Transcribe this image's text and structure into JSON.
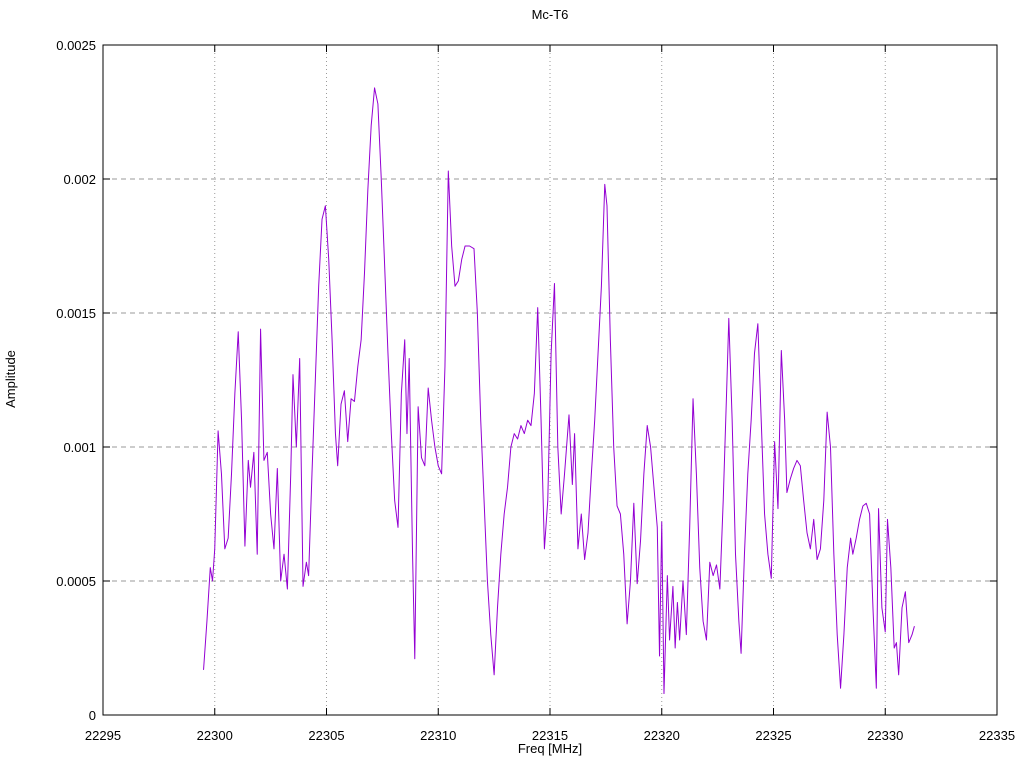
{
  "chart_data": {
    "type": "line",
    "title": "Mc-T6",
    "xlabel": "Freq [MHz]",
    "ylabel": "Amplitude",
    "xlim": [
      22295,
      22335
    ],
    "ylim": [
      0,
      0.0025
    ],
    "xticks": {
      "values": [
        22295,
        22300,
        22305,
        22310,
        22315,
        22320,
        22325,
        22330,
        22335
      ],
      "labels": [
        "22295",
        "22300",
        "22305",
        "22310",
        "22315",
        "22320",
        "22325",
        "22330",
        "22335"
      ]
    },
    "yticks": {
      "values": [
        0,
        0.0005,
        0.001,
        0.0015,
        0.002,
        0.0025
      ],
      "labels": [
        "0",
        "0.0005",
        "0.001",
        "0.0015",
        "0.002",
        "0.0025"
      ]
    },
    "grid": true,
    "legend": "none",
    "line_color": "#9400d3",
    "grid_color": "#9a9a9a",
    "axis_color": "#000000",
    "series": [
      {
        "name": "Mc-T6",
        "points": [
          [
            22299.5,
            0.00017
          ],
          [
            22299.65,
            0.00035
          ],
          [
            22299.8,
            0.00055
          ],
          [
            22299.9,
            0.0005
          ],
          [
            22300.0,
            0.00062
          ],
          [
            22300.15,
            0.00106
          ],
          [
            22300.3,
            0.0009
          ],
          [
            22300.45,
            0.00062
          ],
          [
            22300.6,
            0.00066
          ],
          [
            22300.75,
            0.0009
          ],
          [
            22300.9,
            0.0012
          ],
          [
            22301.05,
            0.00143
          ],
          [
            22301.2,
            0.0011
          ],
          [
            22301.35,
            0.00063
          ],
          [
            22301.5,
            0.00095
          ],
          [
            22301.6,
            0.00085
          ],
          [
            22301.75,
            0.00098
          ],
          [
            22301.9,
            0.0006
          ],
          [
            22302.05,
            0.00144
          ],
          [
            22302.2,
            0.00095
          ],
          [
            22302.35,
            0.00098
          ],
          [
            22302.5,
            0.00075
          ],
          [
            22302.65,
            0.00062
          ],
          [
            22302.8,
            0.00092
          ],
          [
            22302.95,
            0.0005
          ],
          [
            22303.1,
            0.0006
          ],
          [
            22303.25,
            0.00047
          ],
          [
            22303.4,
            0.0009
          ],
          [
            22303.5,
            0.00127
          ],
          [
            22303.65,
            0.001
          ],
          [
            22303.8,
            0.00133
          ],
          [
            22303.95,
            0.00048
          ],
          [
            22304.1,
            0.00057
          ],
          [
            22304.2,
            0.00052
          ],
          [
            22304.35,
            0.0009
          ],
          [
            22304.5,
            0.00125
          ],
          [
            22304.65,
            0.0016
          ],
          [
            22304.8,
            0.00185
          ],
          [
            22304.95,
            0.0019
          ],
          [
            22305.1,
            0.0017
          ],
          [
            22305.25,
            0.0014
          ],
          [
            22305.4,
            0.00105
          ],
          [
            22305.5,
            0.00093
          ],
          [
            22305.65,
            0.00116
          ],
          [
            22305.8,
            0.00121
          ],
          [
            22305.95,
            0.00102
          ],
          [
            22306.1,
            0.00118
          ],
          [
            22306.25,
            0.00117
          ],
          [
            22306.4,
            0.0013
          ],
          [
            22306.55,
            0.0014
          ],
          [
            22306.7,
            0.00165
          ],
          [
            22306.85,
            0.00196
          ],
          [
            22307.0,
            0.0022
          ],
          [
            22307.15,
            0.00234
          ],
          [
            22307.3,
            0.00228
          ],
          [
            22307.45,
            0.002
          ],
          [
            22307.6,
            0.00168
          ],
          [
            22307.75,
            0.00135
          ],
          [
            22307.9,
            0.00105
          ],
          [
            22308.05,
            0.0008
          ],
          [
            22308.2,
            0.0007
          ],
          [
            22308.35,
            0.0012
          ],
          [
            22308.5,
            0.0014
          ],
          [
            22308.6,
            0.00105
          ],
          [
            22308.7,
            0.00133
          ],
          [
            22308.85,
            0.0006
          ],
          [
            22308.95,
            0.00021
          ],
          [
            22309.1,
            0.00115
          ],
          [
            22309.25,
            0.00096
          ],
          [
            22309.4,
            0.00093
          ],
          [
            22309.55,
            0.00122
          ],
          [
            22309.7,
            0.0011
          ],
          [
            22309.85,
            0.001
          ],
          [
            22310.0,
            0.00093
          ],
          [
            22310.15,
            0.0009
          ],
          [
            22310.3,
            0.0013
          ],
          [
            22310.45,
            0.00203
          ],
          [
            22310.6,
            0.00175
          ],
          [
            22310.75,
            0.0016
          ],
          [
            22310.9,
            0.00162
          ],
          [
            22311.05,
            0.0017
          ],
          [
            22311.2,
            0.00175
          ],
          [
            22311.4,
            0.00175
          ],
          [
            22311.6,
            0.00174
          ],
          [
            22311.75,
            0.0015
          ],
          [
            22311.9,
            0.0011
          ],
          [
            22312.05,
            0.0008
          ],
          [
            22312.2,
            0.0005
          ],
          [
            22312.35,
            0.0003
          ],
          [
            22312.5,
            0.00015
          ],
          [
            22312.65,
            0.0004
          ],
          [
            22312.8,
            0.0006
          ],
          [
            22312.95,
            0.00075
          ],
          [
            22313.1,
            0.00085
          ],
          [
            22313.25,
            0.001
          ],
          [
            22313.4,
            0.00105
          ],
          [
            22313.55,
            0.00103
          ],
          [
            22313.7,
            0.00108
          ],
          [
            22313.85,
            0.00105
          ],
          [
            22314.0,
            0.0011
          ],
          [
            22314.15,
            0.00108
          ],
          [
            22314.3,
            0.0012
          ],
          [
            22314.45,
            0.00152
          ],
          [
            22314.6,
            0.0011
          ],
          [
            22314.75,
            0.00062
          ],
          [
            22314.9,
            0.0008
          ],
          [
            22315.05,
            0.00135
          ],
          [
            22315.2,
            0.00161
          ],
          [
            22315.35,
            0.001
          ],
          [
            22315.5,
            0.00075
          ],
          [
            22315.65,
            0.0009
          ],
          [
            22315.85,
            0.00112
          ],
          [
            22316.0,
            0.00086
          ],
          [
            22316.1,
            0.00105
          ],
          [
            22316.25,
            0.00062
          ],
          [
            22316.4,
            0.00075
          ],
          [
            22316.55,
            0.00058
          ],
          [
            22316.7,
            0.00068
          ],
          [
            22316.85,
            0.0009
          ],
          [
            22317.0,
            0.0011
          ],
          [
            22317.15,
            0.00135
          ],
          [
            22317.3,
            0.0016
          ],
          [
            22317.45,
            0.00198
          ],
          [
            22317.55,
            0.0019
          ],
          [
            22317.7,
            0.0014
          ],
          [
            22317.85,
            0.001
          ],
          [
            22318.0,
            0.00078
          ],
          [
            22318.15,
            0.00075
          ],
          [
            22318.3,
            0.0006
          ],
          [
            22318.45,
            0.00034
          ],
          [
            22318.6,
            0.0005
          ],
          [
            22318.75,
            0.00079
          ],
          [
            22318.9,
            0.00049
          ],
          [
            22319.05,
            0.00065
          ],
          [
            22319.2,
            0.0009
          ],
          [
            22319.35,
            0.00108
          ],
          [
            22319.5,
            0.001
          ],
          [
            22319.65,
            0.00085
          ],
          [
            22319.8,
            0.0007
          ],
          [
            22319.9,
            0.00022
          ],
          [
            22320.0,
            0.00072
          ],
          [
            22320.1,
            8e-05
          ],
          [
            22320.25,
            0.00052
          ],
          [
            22320.35,
            0.00028
          ],
          [
            22320.5,
            0.00048
          ],
          [
            22320.6,
            0.00025
          ],
          [
            22320.7,
            0.00042
          ],
          [
            22320.8,
            0.00028
          ],
          [
            22320.95,
            0.0005
          ],
          [
            22321.1,
            0.0003
          ],
          [
            22321.25,
            0.0007
          ],
          [
            22321.4,
            0.00118
          ],
          [
            22321.55,
            0.0009
          ],
          [
            22321.7,
            0.00055
          ],
          [
            22321.85,
            0.00035
          ],
          [
            22322.0,
            0.00028
          ],
          [
            22322.15,
            0.00057
          ],
          [
            22322.3,
            0.00052
          ],
          [
            22322.45,
            0.00056
          ],
          [
            22322.6,
            0.00047
          ],
          [
            22322.75,
            0.0008
          ],
          [
            22322.9,
            0.0012
          ],
          [
            22323.0,
            0.00148
          ],
          [
            22323.15,
            0.0011
          ],
          [
            22323.3,
            0.0006
          ],
          [
            22323.45,
            0.00035
          ],
          [
            22323.55,
            0.00023
          ],
          [
            22323.7,
            0.0006
          ],
          [
            22323.85,
            0.0009
          ],
          [
            22324.0,
            0.0011
          ],
          [
            22324.15,
            0.00135
          ],
          [
            22324.3,
            0.00146
          ],
          [
            22324.45,
            0.0011
          ],
          [
            22324.6,
            0.00075
          ],
          [
            22324.75,
            0.0006
          ],
          [
            22324.9,
            0.00051
          ],
          [
            22325.05,
            0.00102
          ],
          [
            22325.2,
            0.00077
          ],
          [
            22325.35,
            0.00136
          ],
          [
            22325.5,
            0.0011
          ],
          [
            22325.6,
            0.00083
          ],
          [
            22325.75,
            0.00088
          ],
          [
            22325.9,
            0.00092
          ],
          [
            22326.05,
            0.00095
          ],
          [
            22326.2,
            0.00093
          ],
          [
            22326.35,
            0.0008
          ],
          [
            22326.5,
            0.00068
          ],
          [
            22326.65,
            0.00062
          ],
          [
            22326.8,
            0.00073
          ],
          [
            22326.95,
            0.00058
          ],
          [
            22327.1,
            0.00062
          ],
          [
            22327.25,
            0.0008
          ],
          [
            22327.4,
            0.00113
          ],
          [
            22327.55,
            0.001
          ],
          [
            22327.7,
            0.0006
          ],
          [
            22327.85,
            0.0003
          ],
          [
            22328.0,
            0.0001
          ],
          [
            22328.15,
            0.0003
          ],
          [
            22328.3,
            0.00055
          ],
          [
            22328.45,
            0.00066
          ],
          [
            22328.55,
            0.0006
          ],
          [
            22328.7,
            0.00066
          ],
          [
            22328.85,
            0.00073
          ],
          [
            22329.0,
            0.00078
          ],
          [
            22329.15,
            0.00079
          ],
          [
            22329.3,
            0.00075
          ],
          [
            22329.45,
            0.0004
          ],
          [
            22329.6,
            0.0001
          ],
          [
            22329.7,
            0.00077
          ],
          [
            22329.85,
            0.0004
          ],
          [
            22330.0,
            0.00031
          ],
          [
            22330.1,
            0.00073
          ],
          [
            22330.25,
            0.00055
          ],
          [
            22330.4,
            0.00025
          ],
          [
            22330.5,
            0.00027
          ],
          [
            22330.6,
            0.00015
          ],
          [
            22330.75,
            0.0004
          ],
          [
            22330.9,
            0.00046
          ],
          [
            22331.05,
            0.00027
          ],
          [
            22331.2,
            0.0003
          ],
          [
            22331.3,
            0.00033
          ]
        ]
      }
    ]
  }
}
